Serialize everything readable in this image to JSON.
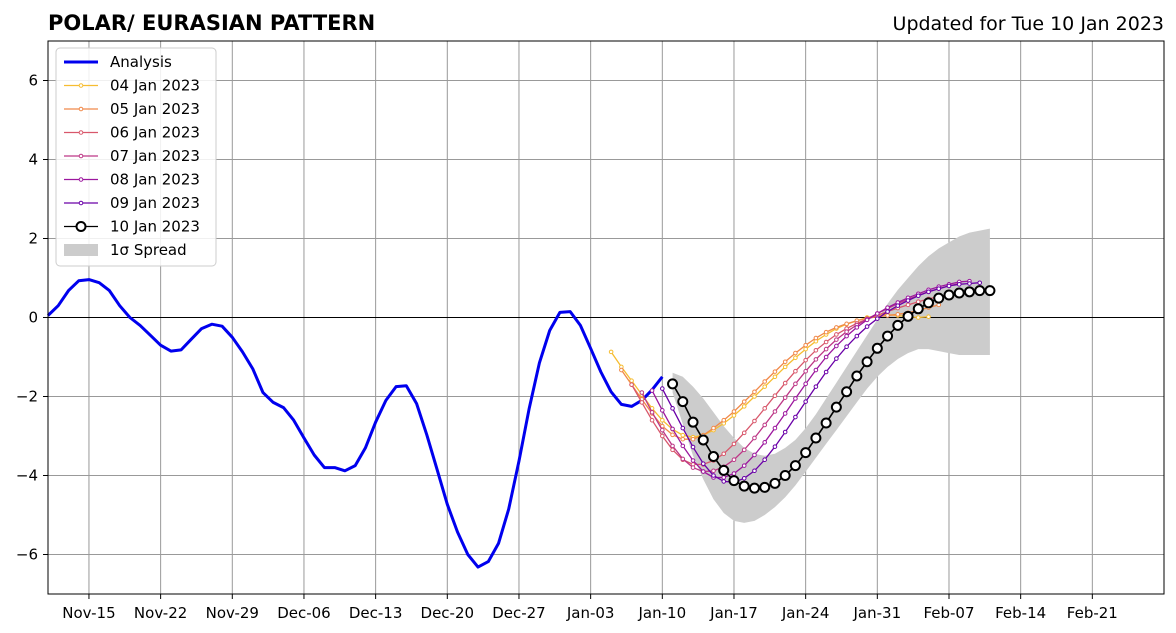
{
  "header": {
    "title": "POLAR/ EURASIAN  PATTERN",
    "updated": "Updated for Tue 10 Jan 2023"
  },
  "chart_data": {
    "type": "line",
    "title": "POLAR/ EURASIAN  PATTERN",
    "subtitle": "Updated for Tue 10 Jan 2023",
    "xlabel": "",
    "ylabel": "",
    "x_unit": "date",
    "xlim": [
      "2022-11-11",
      "2023-02-28"
    ],
    "ylim": [
      -7,
      7
    ],
    "grid": true,
    "legend_position": "top-left",
    "x_ticks": [
      {
        "date": "2022-11-15",
        "label": "Nov-15"
      },
      {
        "date": "2022-11-22",
        "label": "Nov-22"
      },
      {
        "date": "2022-11-29",
        "label": "Nov-29"
      },
      {
        "date": "2022-12-06",
        "label": "Dec-06"
      },
      {
        "date": "2022-12-13",
        "label": "Dec-13"
      },
      {
        "date": "2022-12-20",
        "label": "Dec-20"
      },
      {
        "date": "2022-12-27",
        "label": "Dec-27"
      },
      {
        "date": "2023-01-03",
        "label": "Jan-03"
      },
      {
        "date": "2023-01-10",
        "label": "Jan-10"
      },
      {
        "date": "2023-01-17",
        "label": "Jan-17"
      },
      {
        "date": "2023-01-24",
        "label": "Jan-24"
      },
      {
        "date": "2023-01-31",
        "label": "Jan-31"
      },
      {
        "date": "2023-02-07",
        "label": "Feb-07"
      },
      {
        "date": "2023-02-14",
        "label": "Feb-14"
      },
      {
        "date": "2023-02-21",
        "label": "Feb-21"
      }
    ],
    "y_ticks": [
      {
        "value": 6,
        "label": "6"
      },
      {
        "value": 4,
        "label": "4"
      },
      {
        "value": 2,
        "label": "2"
      },
      {
        "value": 0,
        "label": "0"
      },
      {
        "value": -2,
        "label": "−2"
      },
      {
        "value": -4,
        "label": "−4"
      },
      {
        "value": -6,
        "label": "−6"
      }
    ],
    "series": [
      {
        "name": "Analysis",
        "color": "#0000ee",
        "style": "analysis",
        "start": "2022-11-11",
        "values": [
          0.05,
          0.3,
          0.68,
          0.93,
          0.96,
          0.88,
          0.68,
          0.3,
          0.0,
          -0.2,
          -0.45,
          -0.7,
          -0.85,
          -0.82,
          -0.55,
          -0.28,
          -0.17,
          -0.22,
          -0.5,
          -0.87,
          -1.3,
          -1.9,
          -2.15,
          -2.28,
          -2.6,
          -3.05,
          -3.48,
          -3.8,
          -3.8,
          -3.88,
          -3.75,
          -3.3,
          -2.65,
          -2.1,
          -1.75,
          -1.73,
          -2.18,
          -2.97,
          -3.85,
          -4.73,
          -5.43,
          -6.0,
          -6.32,
          -6.18,
          -5.72,
          -4.85,
          -3.63,
          -2.3,
          -1.15,
          -0.33,
          0.13,
          0.15,
          -0.2,
          -0.78,
          -1.38,
          -1.88,
          -2.2,
          -2.25,
          -2.1,
          -1.83,
          -1.5
        ]
      },
      {
        "name": "04 Jan 2023",
        "color": "#f6bd31",
        "style": "forecast",
        "start": "2023-01-05",
        "values": [
          -0.87,
          -1.25,
          -1.6,
          -1.95,
          -2.3,
          -2.6,
          -2.83,
          -2.98,
          -3.03,
          -2.98,
          -2.85,
          -2.68,
          -2.48,
          -2.25,
          -2.0,
          -1.75,
          -1.5,
          -1.25,
          -1.02,
          -0.8,
          -0.6,
          -0.43,
          -0.28,
          -0.17,
          -0.08,
          0.0,
          0.05,
          0.07,
          0.05,
          0.02,
          0.0,
          0.02
        ]
      },
      {
        "name": "05 Jan 2023",
        "color": "#f0894a",
        "style": "forecast",
        "start": "2023-01-06",
        "values": [
          -1.33,
          -1.7,
          -2.07,
          -2.43,
          -2.75,
          -2.97,
          -3.08,
          -3.08,
          -2.98,
          -2.8,
          -2.6,
          -2.38,
          -2.13,
          -1.88,
          -1.62,
          -1.37,
          -1.12,
          -0.9,
          -0.7,
          -0.52,
          -0.37,
          -0.25,
          -0.16,
          -0.08,
          -0.02,
          0.02,
          0.05,
          0.08,
          0.12,
          0.18,
          0.25,
          0.32
        ]
      },
      {
        "name": "06 Jan 2023",
        "color": "#d8576b",
        "style": "forecast",
        "start": "2023-01-07",
        "values": [
          -1.7,
          -2.15,
          -2.6,
          -3.0,
          -3.35,
          -3.6,
          -3.72,
          -3.72,
          -3.62,
          -3.45,
          -3.2,
          -2.92,
          -2.62,
          -2.3,
          -1.98,
          -1.66,
          -1.36,
          -1.08,
          -0.83,
          -0.62,
          -0.43,
          -0.28,
          -0.15,
          -0.04,
          0.06,
          0.15,
          0.24,
          0.32,
          0.4,
          0.47,
          0.53,
          0.58
        ]
      },
      {
        "name": "07 Jan 2023",
        "color": "#bd3786",
        "style": "forecast",
        "start": "2023-01-08",
        "values": [
          -1.9,
          -2.4,
          -2.85,
          -3.25,
          -3.58,
          -3.8,
          -3.9,
          -3.88,
          -3.78,
          -3.6,
          -3.35,
          -3.05,
          -2.72,
          -2.38,
          -2.03,
          -1.68,
          -1.36,
          -1.06,
          -0.8,
          -0.56,
          -0.36,
          -0.19,
          -0.04,
          0.1,
          0.23,
          0.35,
          0.46,
          0.56,
          0.65,
          0.73,
          0.8,
          0.86
        ]
      },
      {
        "name": "08 Jan 2023",
        "color": "#9c179e",
        "style": "forecast",
        "start": "2023-01-09",
        "values": [
          -1.85,
          -2.35,
          -2.82,
          -3.25,
          -3.62,
          -3.9,
          -4.05,
          -4.05,
          -3.95,
          -3.75,
          -3.48,
          -3.16,
          -2.8,
          -2.43,
          -2.05,
          -1.68,
          -1.33,
          -1.0,
          -0.72,
          -0.47,
          -0.25,
          -0.06,
          0.1,
          0.25,
          0.38,
          0.5,
          0.6,
          0.7,
          0.78,
          0.84,
          0.9,
          0.92
        ]
      },
      {
        "name": "09 Jan 2023",
        "color": "#6a00a8",
        "style": "forecast",
        "start": "2023-01-10",
        "values": [
          -1.8,
          -2.3,
          -2.8,
          -3.28,
          -3.7,
          -4.0,
          -4.15,
          -4.17,
          -4.07,
          -3.88,
          -3.6,
          -3.27,
          -2.9,
          -2.52,
          -2.13,
          -1.75,
          -1.38,
          -1.04,
          -0.74,
          -0.47,
          -0.23,
          -0.03,
          0.15,
          0.3,
          0.43,
          0.55,
          0.65,
          0.73,
          0.8,
          0.84,
          0.86,
          0.88
        ]
      },
      {
        "name": "10 Jan 2023",
        "color": "#000000",
        "style": "current",
        "start": "2023-01-11",
        "values": [
          -1.68,
          -2.13,
          -2.65,
          -3.1,
          -3.52,
          -3.87,
          -4.13,
          -4.27,
          -4.32,
          -4.3,
          -4.2,
          -4.0,
          -3.75,
          -3.42,
          -3.05,
          -2.67,
          -2.27,
          -1.88,
          -1.48,
          -1.12,
          -0.78,
          -0.47,
          -0.2,
          0.03,
          0.22,
          0.37,
          0.49,
          0.57,
          0.62,
          0.65,
          0.68,
          0.68
        ]
      }
    ],
    "spread": {
      "name": "1σ Spread",
      "color": "#cccccc",
      "start": "2023-01-11",
      "upper": [
        -1.4,
        -1.5,
        -1.75,
        -2.05,
        -2.4,
        -2.75,
        -3.05,
        -3.3,
        -3.45,
        -3.5,
        -3.45,
        -3.3,
        -3.1,
        -2.8,
        -2.45,
        -2.05,
        -1.65,
        -1.25,
        -0.85,
        -0.45,
        -0.05,
        0.35,
        0.7,
        1.0,
        1.3,
        1.55,
        1.75,
        1.9,
        2.05,
        2.15,
        2.2,
        2.25
      ],
      "lower": [
        -1.9,
        -2.7,
        -3.5,
        -4.1,
        -4.6,
        -4.95,
        -5.15,
        -5.2,
        -5.15,
        -5.0,
        -4.8,
        -4.55,
        -4.25,
        -3.9,
        -3.55,
        -3.2,
        -2.85,
        -2.5,
        -2.15,
        -1.8,
        -1.5,
        -1.25,
        -1.05,
        -0.9,
        -0.8,
        -0.8,
        -0.85,
        -0.9,
        -0.95,
        -0.95,
        -0.95,
        -0.95
      ]
    }
  }
}
